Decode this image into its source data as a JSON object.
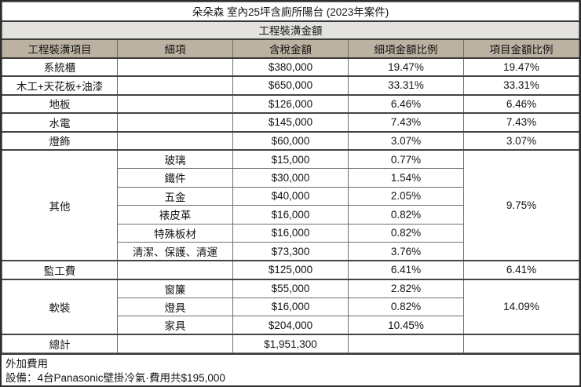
{
  "title": "朵朵森 室內25坪含廁所陽台 (2023年案件)",
  "section_title": "工程裝潢金額",
  "columns": [
    "工程裝潢項目",
    "細項",
    "含稅金額",
    "細項金額比例",
    "項目金額比例"
  ],
  "groups": [
    {
      "item": "系統櫃",
      "item_pct": "19.47%",
      "rows": [
        {
          "sub": "",
          "amount": "$380,000",
          "sub_pct": "19.47%"
        }
      ]
    },
    {
      "item": "木工+天花板+油漆",
      "item_pct": "33.31%",
      "rows": [
        {
          "sub": "",
          "amount": "$650,000",
          "sub_pct": "33.31%"
        }
      ]
    },
    {
      "item": "地板",
      "item_pct": "6.46%",
      "rows": [
        {
          "sub": "",
          "amount": "$126,000",
          "sub_pct": "6.46%"
        }
      ]
    },
    {
      "item": "水電",
      "item_pct": "7.43%",
      "rows": [
        {
          "sub": "",
          "amount": "$145,000",
          "sub_pct": "7.43%"
        }
      ]
    },
    {
      "item": "燈飾",
      "item_pct": "3.07%",
      "rows": [
        {
          "sub": "",
          "amount": "$60,000",
          "sub_pct": "3.07%"
        }
      ]
    },
    {
      "item": "其他",
      "item_pct": "9.75%",
      "rows": [
        {
          "sub": "玻璃",
          "amount": "$15,000",
          "sub_pct": "0.77%"
        },
        {
          "sub": "鐵件",
          "amount": "$30,000",
          "sub_pct": "1.54%"
        },
        {
          "sub": "五金",
          "amount": "$40,000",
          "sub_pct": "2.05%"
        },
        {
          "sub": "裱皮革",
          "amount": "$16,000",
          "sub_pct": "0.82%"
        },
        {
          "sub": "特殊板材",
          "amount": "$16,000",
          "sub_pct": "0.82%"
        },
        {
          "sub": "清潔、保護、清運",
          "amount": "$73,300",
          "sub_pct": "3.76%"
        }
      ]
    },
    {
      "item": "監工費",
      "item_pct": "6.41%",
      "rows": [
        {
          "sub": "",
          "amount": "$125,000",
          "sub_pct": "6.41%"
        }
      ]
    },
    {
      "item": "軟裝",
      "item_pct": "14.09%",
      "rows": [
        {
          "sub": "窗簾",
          "amount": "$55,000",
          "sub_pct": "2.82%"
        },
        {
          "sub": "燈具",
          "amount": "$16,000",
          "sub_pct": "0.82%"
        },
        {
          "sub": "家具",
          "amount": "$204,000",
          "sub_pct": "10.45%"
        }
      ]
    },
    {
      "item": "總計",
      "item_pct": "",
      "rows": [
        {
          "sub": "",
          "amount": "$1,951,300",
          "sub_pct": ""
        }
      ]
    }
  ],
  "footer": {
    "line1": "外加費用",
    "line2": "設備：4台Panasonic壁掛冷氣·費用共$195,000"
  },
  "colors": {
    "header_bg": "#bcb2a2",
    "section_bg": "#e4e2df",
    "border_dark": "#3a3a3a",
    "grid": "#6f6f6f",
    "text": "#141414"
  }
}
